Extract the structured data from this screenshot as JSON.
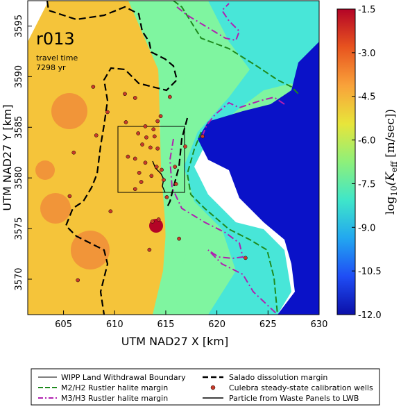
{
  "run_label": "r013",
  "travel_time_label": "travel time",
  "travel_time_value": "7298 yr",
  "x_axis_label": "UTM NAD27 X [km]",
  "y_axis_label": "UTM NAD27 Y [km]",
  "x_ticks": [
    "605",
    "610",
    "615",
    "620",
    "625",
    "630"
  ],
  "y_ticks": [
    "3570",
    "3575",
    "3580",
    "3585",
    "3590",
    "3595"
  ],
  "colorbar": {
    "ticks": [
      "-1.5",
      "-3.0",
      "-4.5",
      "-6.0",
      "-7.5",
      "-9.0",
      "-10.5",
      "-12.0"
    ],
    "label_prefix": "log",
    "label_sub10": "10",
    "label_K": "(K",
    "label_eff": "eff",
    "label_units": " [m/sec])",
    "colors": [
      "#b40426",
      "#e8541f",
      "#f9a23a",
      "#e8e53a",
      "#8ef07a",
      "#3fe6c9",
      "#22a7f0",
      "#1f4df5",
      "#0b0fa8"
    ]
  },
  "map_colors": {
    "high": "#f08a3a",
    "mid": "#f5c43a",
    "low": "#7ff5a0",
    "cyan": "#48e6d8",
    "deep": "#0a12c8"
  },
  "legend": {
    "items": [
      {
        "label": "WIPP Land Withdrawal Boundary",
        "style": "thin-solid-black"
      },
      {
        "label": "Salado dissolution margin",
        "style": "dashed-black"
      },
      {
        "label": "M2/H2 Rustler halite margin",
        "style": "dashed-green"
      },
      {
        "label": "Culebra steady-state calibration wells",
        "style": "red-dot"
      },
      {
        "label": "M3/H3 Rustler halite margin",
        "style": "dashdot-magenta"
      },
      {
        "label": "Particle from Waste Panels to LWB",
        "style": "solid-black"
      }
    ]
  },
  "chart_data": {
    "type": "heatmap",
    "title": "r013",
    "xlabel": "UTM NAD27 X [km]",
    "ylabel": "UTM NAD27 Y [km]",
    "xlim": [
      601.5,
      630
    ],
    "ylim": [
      3566.5,
      3597.5
    ],
    "colorbar_range": [
      -12.0,
      -1.5
    ],
    "colorbar_label": "log10(K_eff [m/sec])",
    "wells": [
      {
        "x": 607.9,
        "y": 3589.0
      },
      {
        "x": 609.3,
        "y": 3586.5
      },
      {
        "x": 611.0,
        "y": 3588.3
      },
      {
        "x": 612.0,
        "y": 3587.9
      },
      {
        "x": 613.0,
        "y": 3585.1
      },
      {
        "x": 613.8,
        "y": 3584.8
      },
      {
        "x": 612.3,
        "y": 3584.4
      },
      {
        "x": 613.1,
        "y": 3584.0
      },
      {
        "x": 612.7,
        "y": 3583.3
      },
      {
        "x": 613.5,
        "y": 3583.0
      },
      {
        "x": 614.2,
        "y": 3582.9
      },
      {
        "x": 611.3,
        "y": 3582.1
      },
      {
        "x": 612.0,
        "y": 3581.9
      },
      {
        "x": 613.0,
        "y": 3581.5
      },
      {
        "x": 614.1,
        "y": 3581.1
      },
      {
        "x": 614.6,
        "y": 3580.8
      },
      {
        "x": 612.4,
        "y": 3580.5
      },
      {
        "x": 613.6,
        "y": 3580.2
      },
      {
        "x": 614.8,
        "y": 3579.8
      },
      {
        "x": 616.9,
        "y": 3583.1
      },
      {
        "x": 618.6,
        "y": 3584.1
      },
      {
        "x": 615.4,
        "y": 3588.0
      },
      {
        "x": 614.5,
        "y": 3586.1
      },
      {
        "x": 606.0,
        "y": 3582.5
      },
      {
        "x": 605.6,
        "y": 3578.2
      },
      {
        "x": 609.6,
        "y": 3576.7
      },
      {
        "x": 612.0,
        "y": 3578.9
      },
      {
        "x": 615.1,
        "y": 3578.1
      },
      {
        "x": 613.7,
        "y": 3575.7
      },
      {
        "x": 616.3,
        "y": 3574.0
      },
      {
        "x": 614.3,
        "y": 3575.9
      },
      {
        "x": 613.4,
        "y": 3572.9
      },
      {
        "x": 616.0,
        "y": 3579.4
      },
      {
        "x": 615.9,
        "y": 3581.1
      },
      {
        "x": 606.4,
        "y": 3569.9
      },
      {
        "x": 622.8,
        "y": 3572.1
      },
      {
        "x": 613.9,
        "y": 3584.1
      },
      {
        "x": 612.6,
        "y": 3579.6
      },
      {
        "x": 614.2,
        "y": 3585.6
      },
      {
        "x": 611.1,
        "y": 3585.5
      },
      {
        "x": 608.2,
        "y": 3584.2
      }
    ]
  }
}
